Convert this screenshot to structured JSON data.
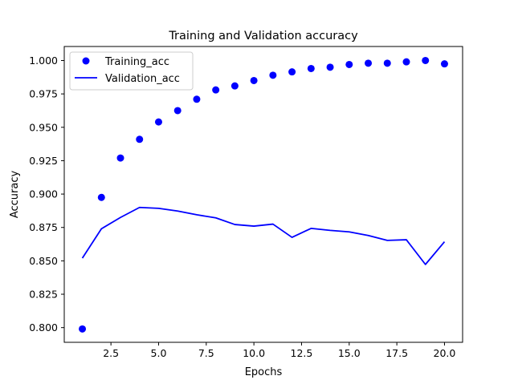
{
  "chart_data": {
    "type": "line",
    "title": "Training and Validation accuracy",
    "xlabel": "Epochs",
    "ylabel": "Accuracy",
    "xlim": [
      0.05,
      20.95
    ],
    "ylim": [
      0.789,
      1.0105
    ],
    "xticks": [
      2.5,
      5.0,
      7.5,
      10.0,
      12.5,
      15.0,
      17.5,
      20.0
    ],
    "xtick_labels": [
      "2.5",
      "5.0",
      "7.5",
      "10.0",
      "12.5",
      "15.0",
      "17.5",
      "20.0"
    ],
    "yticks": [
      0.8,
      0.825,
      0.85,
      0.875,
      0.9,
      0.925,
      0.95,
      0.975,
      1.0
    ],
    "ytick_labels": [
      "0.800",
      "0.825",
      "0.850",
      "0.875",
      "0.900",
      "0.925",
      "0.950",
      "0.975",
      "1.000"
    ],
    "grid": false,
    "legend_position": "top-left",
    "x": [
      1,
      2,
      3,
      4,
      5,
      6,
      7,
      8,
      9,
      10,
      11,
      12,
      13,
      14,
      15,
      16,
      17,
      18,
      19,
      20
    ],
    "series": [
      {
        "name": "Training_acc",
        "style": "scatter",
        "color": "#0000ff",
        "values": [
          0.799,
          0.8975,
          0.927,
          0.941,
          0.954,
          0.9625,
          0.971,
          0.978,
          0.981,
          0.985,
          0.989,
          0.9915,
          0.994,
          0.995,
          0.997,
          0.998,
          0.998,
          0.999,
          1.0,
          0.9975
        ]
      },
      {
        "name": "Validation_acc",
        "style": "line",
        "color": "#0000ff",
        "values": [
          0.852,
          0.874,
          0.8825,
          0.89,
          0.8893,
          0.8873,
          0.8845,
          0.8822,
          0.8772,
          0.876,
          0.8775,
          0.8676,
          0.8743,
          0.8728,
          0.8717,
          0.869,
          0.8653,
          0.8658,
          0.8473,
          0.8643
        ]
      }
    ]
  }
}
